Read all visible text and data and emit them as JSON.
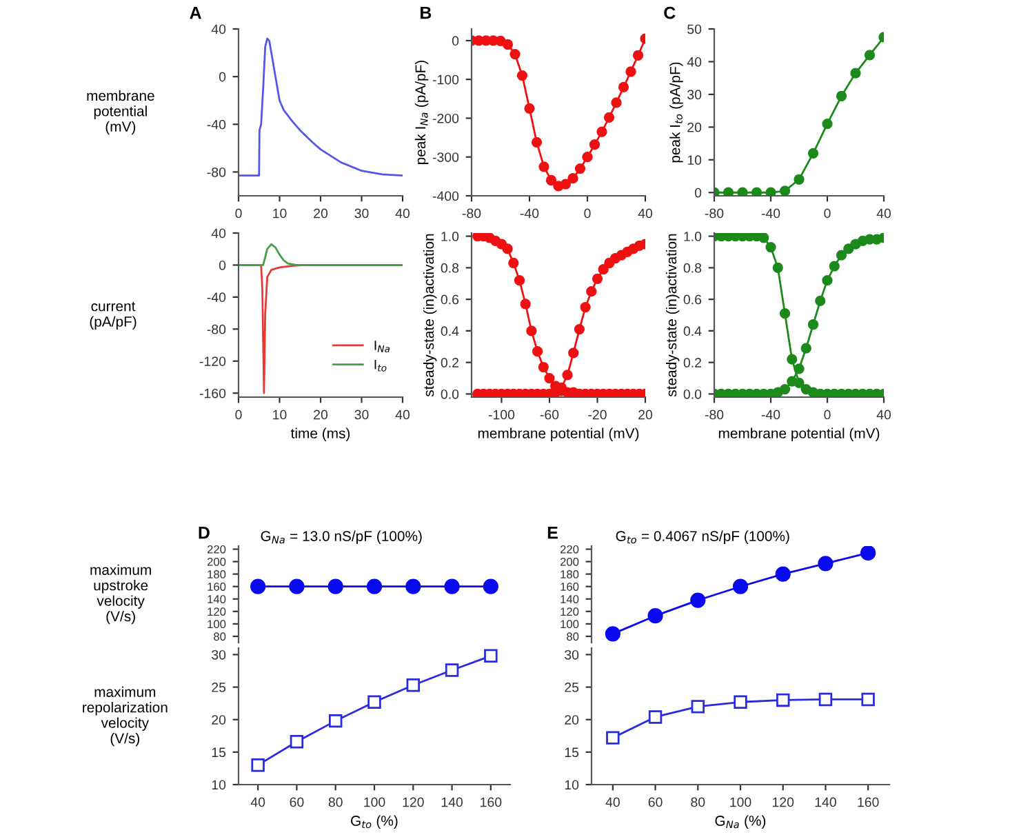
{
  "chart_data": [
    {
      "type": "line",
      "title": "A",
      "ylabel": "membrane\npotential\n(mV)",
      "xlim": [
        0,
        40
      ],
      "xticks": [
        0,
        10,
        20,
        30,
        40
      ],
      "ylim": [
        -100,
        40
      ],
      "yticks": [
        -80,
        -40,
        0,
        40
      ],
      "grid": false,
      "legend": false,
      "series": [
        {
          "color": "#5555ee",
          "x": [
            0,
            5,
            5.1,
            5.5,
            6,
            6.5,
            7,
            7.5,
            8,
            9,
            10,
            11,
            13,
            15,
            18,
            20,
            25,
            30,
            35,
            40
          ],
          "values": [
            -83,
            -83,
            -45,
            -40,
            -10,
            25,
            32,
            30,
            20,
            0,
            -20,
            -28,
            -37,
            -45,
            -55,
            -61,
            -72,
            -79,
            -82,
            -83
          ]
        }
      ]
    },
    {
      "type": "line",
      "xlabel": "time (ms)",
      "ylabel": "current\n(pA/pF)",
      "xlim": [
        0,
        40
      ],
      "xticks": [
        0,
        10,
        20,
        30,
        40
      ],
      "ylim": [
        -165,
        40
      ],
      "yticks": [
        -160,
        -120,
        -80,
        -40,
        0,
        40
      ],
      "grid": false,
      "legend": "right",
      "series": [
        {
          "name": "I$_{Na}$",
          "color": "#e53935",
          "x": [
            0,
            5.5,
            5.8,
            6.2,
            6.5,
            7,
            8,
            10,
            13,
            16,
            40
          ],
          "values": [
            0,
            0,
            -30,
            -160,
            -60,
            -15,
            -6,
            -3,
            -1,
            0,
            0
          ]
        },
        {
          "name": "I$_{to}$",
          "color": "#43a047",
          "x": [
            0,
            6,
            6.5,
            7,
            8,
            9,
            10,
            11,
            12,
            14,
            40
          ],
          "values": [
            0,
            0,
            10,
            20,
            26,
            22,
            13,
            6,
            2,
            0,
            0
          ]
        }
      ]
    },
    {
      "type": "line",
      "title": "B",
      "ylabel": "peak I$_{Na}$ (pA/pF)",
      "xlim": [
        -80,
        40
      ],
      "xticks": [
        -80,
        -40,
        0,
        40
      ],
      "ylim": [
        -400,
        30
      ],
      "yticks": [
        -400,
        -300,
        -200,
        -100,
        0
      ],
      "grid": false,
      "legend": false,
      "marker": "circle",
      "series": [
        {
          "color": "#ee1111",
          "x": [
            -80,
            -75,
            -70,
            -65,
            -60,
            -55,
            -50,
            -45,
            -40,
            -35,
            -30,
            -25,
            -20,
            -15,
            -10,
            -5,
            0,
            5,
            10,
            15,
            20,
            25,
            30,
            35,
            40
          ],
          "values": [
            0,
            0,
            0,
            0,
            -1,
            -10,
            -35,
            -90,
            -175,
            -262,
            -325,
            -360,
            -375,
            -370,
            -355,
            -330,
            -300,
            -268,
            -235,
            -198,
            -160,
            -120,
            -80,
            -38,
            5
          ]
        }
      ]
    },
    {
      "type": "line",
      "xlabel": "membrane potential (mV)",
      "ylabel": "steady-state (in)activation",
      "xlim": [
        -125,
        20
      ],
      "xticks": [
        -100,
        -60,
        -20,
        20
      ],
      "ylim": [
        -0.02,
        1.02
      ],
      "yticks": [
        {
          "value": 0,
          "label": "0.0"
        },
        {
          "value": 0.2,
          "label": "0.2"
        },
        {
          "value": 0.4,
          "label": "0.4"
        },
        {
          "value": 0.6,
          "label": "0.6"
        },
        {
          "value": 0.8,
          "label": "0.8"
        },
        {
          "value": 1,
          "label": "1.0"
        }
      ],
      "grid": false,
      "legend": false,
      "marker": "circle",
      "series": [
        {
          "color": "#ee1111",
          "x": [
            -120,
            -115,
            -110,
            -105,
            -100,
            -95,
            -90,
            -85,
            -80,
            -75,
            -70,
            -65,
            -60,
            -55,
            -50,
            -45,
            -40,
            -35,
            -30,
            -25,
            -20,
            -15,
            -10,
            -5,
            0,
            5,
            10,
            15,
            20
          ],
          "values": [
            1.0,
            1.0,
            0.99,
            0.97,
            0.95,
            0.92,
            0.83,
            0.72,
            0.57,
            0.4,
            0.27,
            0.17,
            0.1,
            0.05,
            0.02,
            0.01,
            0.01,
            0,
            0,
            0,
            0,
            0,
            0,
            0,
            0,
            0,
            0,
            0,
            0
          ]
        },
        {
          "color": "#ee1111",
          "x": [
            -120,
            -115,
            -110,
            -105,
            -100,
            -95,
            -90,
            -85,
            -80,
            -75,
            -70,
            -65,
            -60,
            -55,
            -50,
            -45,
            -40,
            -35,
            -30,
            -25,
            -20,
            -15,
            -10,
            -5,
            0,
            5,
            10,
            15,
            20
          ],
          "values": [
            0,
            0,
            0,
            0,
            0,
            0,
            0,
            0,
            0,
            0,
            0,
            0,
            0,
            0.01,
            0.04,
            0.12,
            0.26,
            0.41,
            0.55,
            0.65,
            0.73,
            0.79,
            0.83,
            0.86,
            0.88,
            0.9,
            0.92,
            0.94,
            0.95
          ]
        }
      ]
    },
    {
      "type": "line",
      "title": "C",
      "ylabel": "peak I$_{to}$ (pA/pF)",
      "xlim": [
        -80,
        40
      ],
      "xticks": [
        -80,
        -40,
        0,
        40
      ],
      "ylim": [
        -1,
        50
      ],
      "yticks": [
        0,
        10,
        20,
        30,
        40,
        50
      ],
      "grid": false,
      "legend": false,
      "marker": "circle",
      "series": [
        {
          "color": "#1b8a1b",
          "x": [
            -80,
            -70,
            -60,
            -50,
            -40,
            -30,
            -20,
            -10,
            0,
            10,
            20,
            30,
            40
          ],
          "values": [
            0,
            0,
            0,
            0,
            0,
            0.5,
            4,
            12,
            21,
            29.5,
            36.5,
            42,
            47.5
          ]
        }
      ]
    },
    {
      "type": "line",
      "xlabel": "membrane potential (mV)",
      "ylabel": "steady-state (in)activation",
      "xlim": [
        -80,
        40
      ],
      "xticks": [
        -80,
        -40,
        0,
        40
      ],
      "ylim": [
        -0.02,
        1.02
      ],
      "yticks": [
        {
          "value": 0,
          "label": "0.0"
        },
        {
          "value": 0.2,
          "label": "0.2"
        },
        {
          "value": 0.4,
          "label": "0.4"
        },
        {
          "value": 0.6,
          "label": "0.6"
        },
        {
          "value": 0.8,
          "label": "0.8"
        },
        {
          "value": 1,
          "label": "1.0"
        }
      ],
      "grid": false,
      "legend": false,
      "marker": "circle",
      "series": [
        {
          "color": "#1b8a1b",
          "x": [
            -80,
            -75,
            -70,
            -65,
            -60,
            -55,
            -50,
            -45,
            -40,
            -35,
            -30,
            -25,
            -20,
            -15,
            -10,
            -5,
            0,
            5,
            10,
            15,
            20,
            25,
            30,
            35,
            40
          ],
          "values": [
            1,
            1,
            1,
            1,
            1,
            1,
            1,
            0.99,
            0.93,
            0.8,
            0.51,
            0.22,
            0.07,
            0.03,
            0.01,
            0,
            0,
            0,
            0,
            0,
            0,
            0,
            0,
            0,
            0
          ]
        },
        {
          "color": "#1b8a1b",
          "x": [
            -80,
            -75,
            -70,
            -65,
            -60,
            -55,
            -50,
            -45,
            -40,
            -35,
            -30,
            -25,
            -20,
            -15,
            -10,
            -5,
            0,
            5,
            10,
            15,
            20,
            25,
            30,
            35,
            40
          ],
          "values": [
            0,
            0,
            0,
            0,
            0,
            0,
            0,
            0,
            0,
            0.01,
            0.03,
            0.08,
            0.16,
            0.29,
            0.44,
            0.59,
            0.72,
            0.81,
            0.88,
            0.92,
            0.95,
            0.97,
            0.98,
            0.98,
            0.99
          ]
        }
      ]
    },
    {
      "type": "line",
      "title": "D",
      "ylabel": "maximum\nupstroke\nvelocity\n(V/s)",
      "annotations": [
        "G$_{Na}$ = 13.0 nS/pF (100%)"
      ],
      "categories": [
        null,
        null,
        null,
        null,
        null,
        null,
        null
      ],
      "ylim": [
        70,
        225
      ],
      "yticks": [
        80,
        100,
        120,
        140,
        160,
        180,
        200,
        220
      ],
      "tick_labels": "y",
      "grid": false,
      "legend": false,
      "marker": "circle",
      "series": [
        {
          "color": "#0a0aee",
          "values": [
            160,
            160,
            160,
            160,
            160,
            160,
            160
          ]
        }
      ]
    },
    {
      "type": "line",
      "xlabel": "G$_{to}$ (%)",
      "ylabel": "maximum\nrepolarization\nvelocity\n(V/s)",
      "xlim": [
        30,
        170
      ],
      "xticks": [
        40,
        60,
        80,
        100,
        120,
        140,
        160
      ],
      "ylim": [
        10,
        31
      ],
      "yticks": [
        10,
        15,
        20,
        25,
        30
      ],
      "grid": false,
      "legend": false,
      "marker": "square",
      "series": [
        {
          "color": "#2a2ae0",
          "x": [
            40,
            60,
            80,
            100,
            120,
            140,
            160
          ],
          "values": [
            13,
            16.6,
            19.8,
            22.7,
            25.3,
            27.6,
            29.8
          ]
        }
      ]
    },
    {
      "type": "line",
      "title": "E",
      "annotations": [
        "G$_{to}$ = 0.4067 nS/pF (100%)"
      ],
      "categories": [
        null,
        null,
        null,
        null,
        null,
        null,
        null
      ],
      "ylim": [
        70,
        225
      ],
      "yticks": [
        80,
        100,
        120,
        140,
        160,
        180,
        200,
        220
      ],
      "tick_labels": "y",
      "grid": false,
      "legend": false,
      "marker": "circle",
      "series": [
        {
          "color": "#0a0aee",
          "values": [
            84,
            113,
            138,
            160,
            180,
            197,
            214
          ]
        }
      ]
    },
    {
      "type": "line",
      "xlabel": "G$_{Na}$ (%)",
      "xlim": [
        30,
        170
      ],
      "xticks": [
        40,
        60,
        80,
        100,
        120,
        140,
        160
      ],
      "ylim": [
        10,
        31
      ],
      "yticks": [
        10,
        15,
        20,
        25,
        30
      ],
      "grid": false,
      "legend": false,
      "marker": "square",
      "series": [
        {
          "color": "#2a2ae0",
          "x": [
            40,
            60,
            80,
            100,
            120,
            140,
            160
          ],
          "values": [
            17.2,
            20.4,
            22.0,
            22.7,
            23.0,
            23.1,
            23.1
          ]
        }
      ]
    }
  ]
}
